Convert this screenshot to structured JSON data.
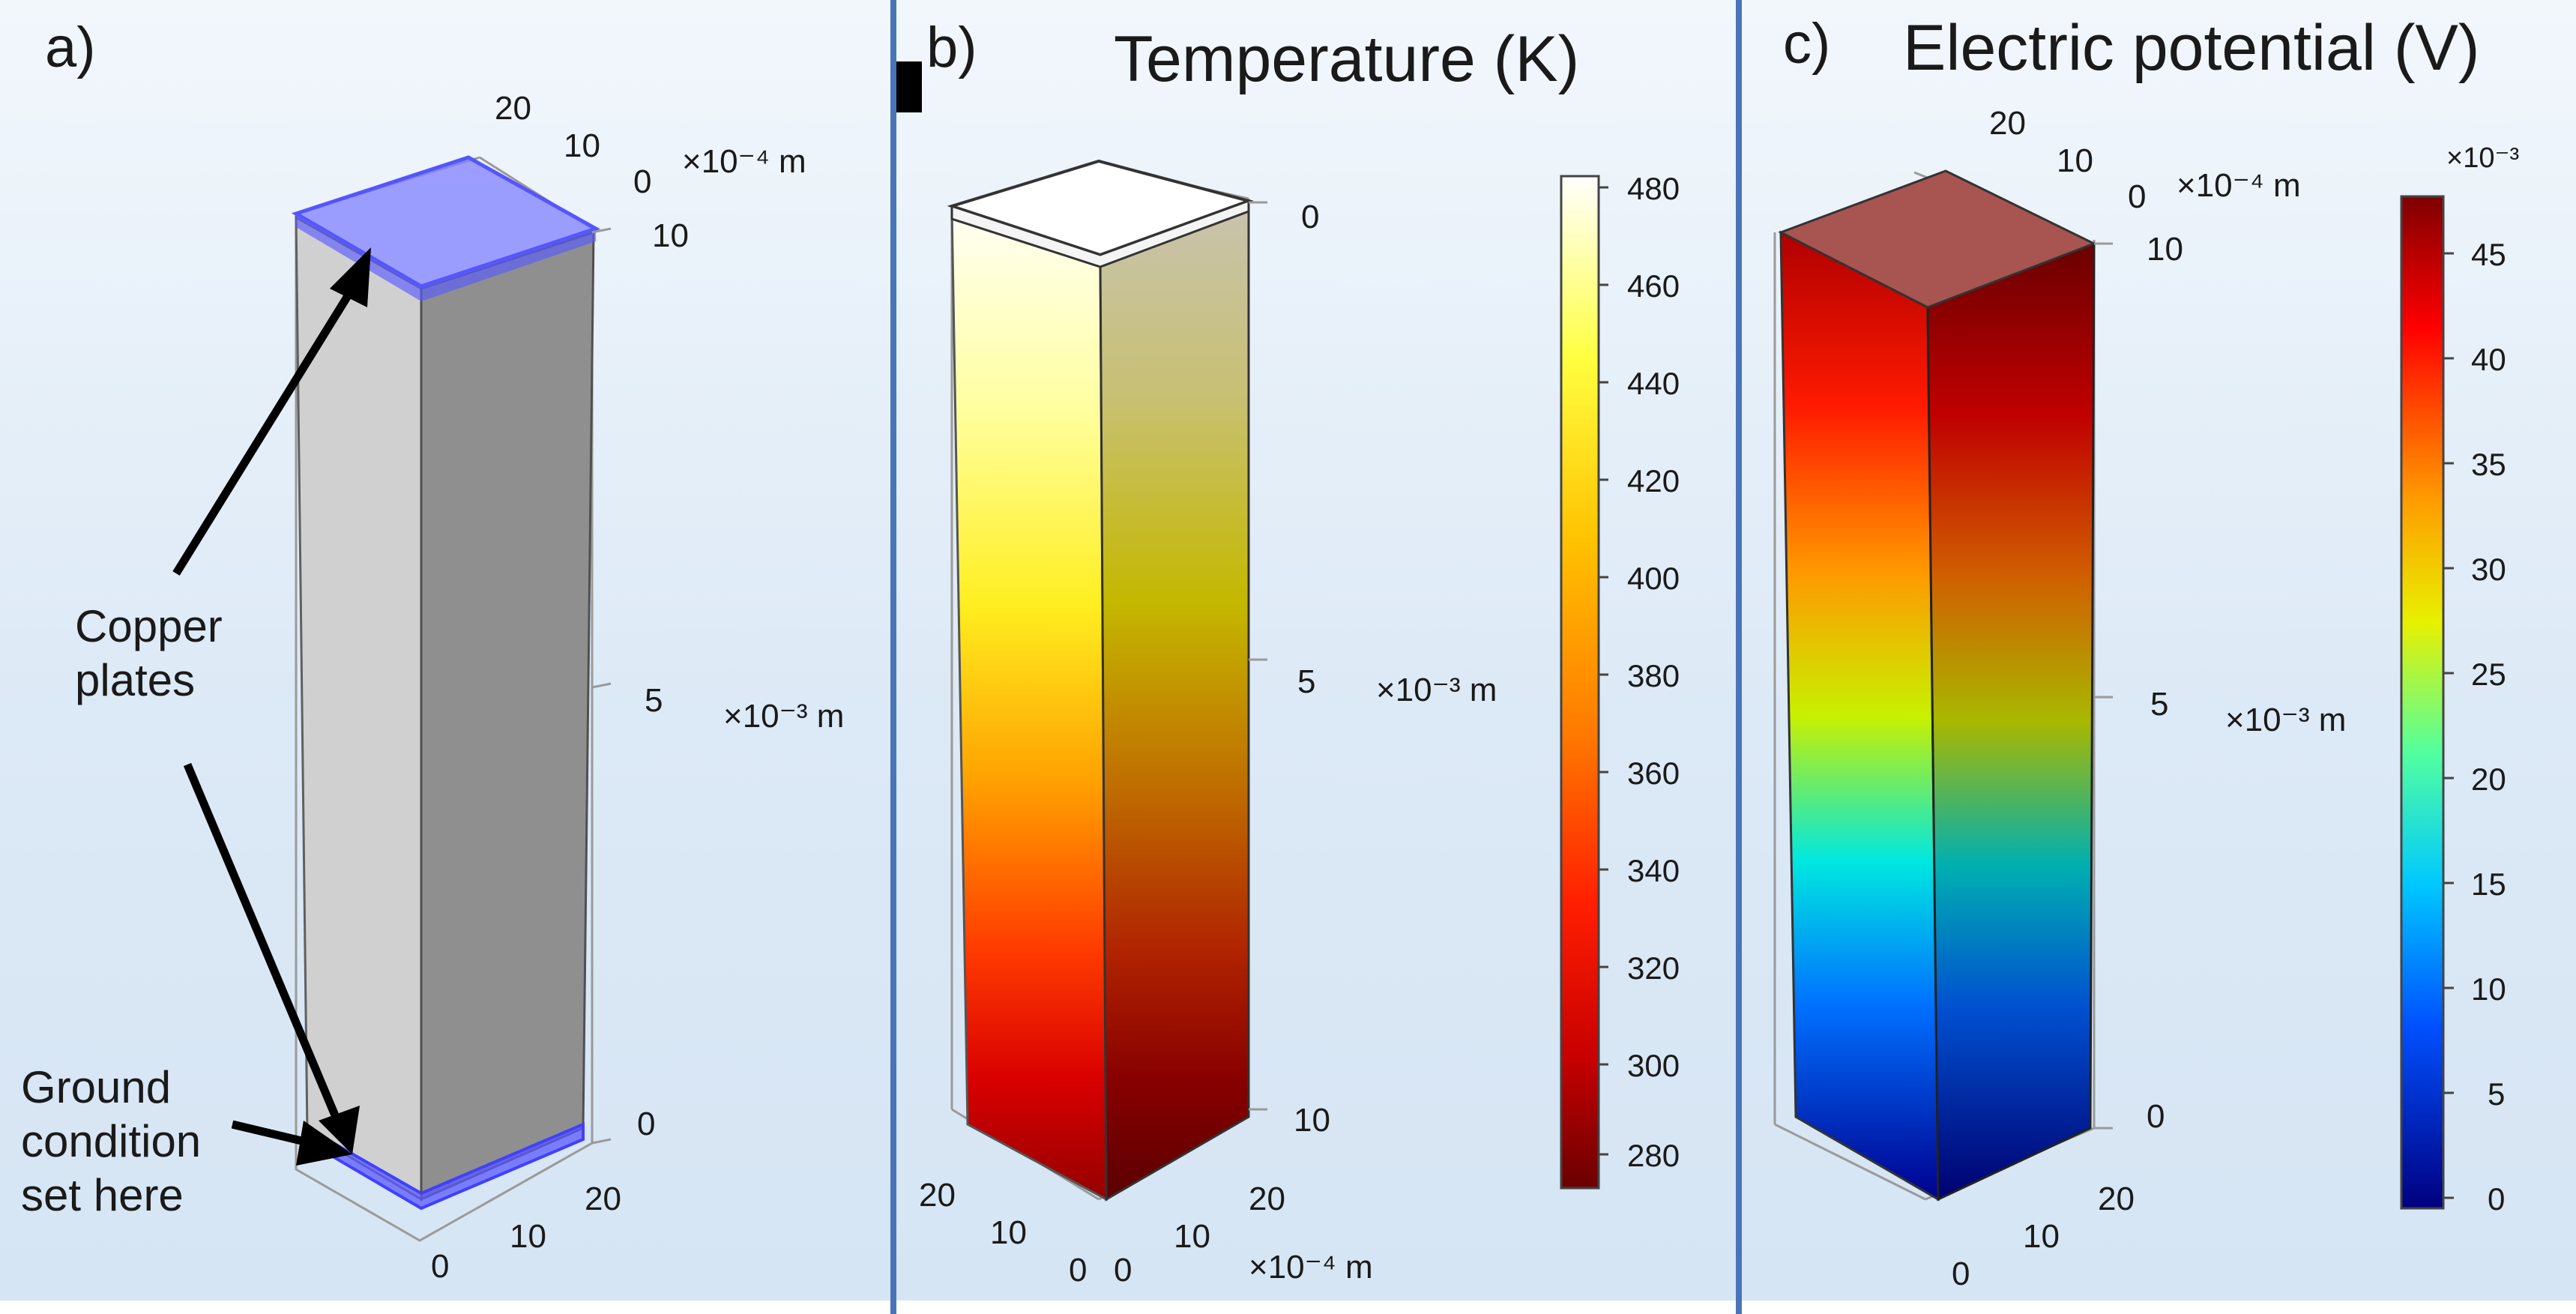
{
  "panels": {
    "a": {
      "letter": "a)",
      "axis_top": {
        "ticks": [
          "20",
          "10",
          "0"
        ],
        "unit": "×10⁻⁴ m"
      },
      "axis_vertical": {
        "ticks": [
          "10",
          "5",
          "0"
        ],
        "unit": "×10⁻³ m"
      },
      "axis_bottom": {
        "ticks": [
          "20",
          "10",
          "0"
        ]
      },
      "annotations": {
        "copper_plates": [
          "Copper",
          "plates"
        ],
        "ground": [
          "Ground",
          "condition",
          "set here"
        ]
      },
      "colors": {
        "plate": "#6b6bff",
        "front_face": "#d0d0d0",
        "side_face": "#8f8f8f"
      }
    },
    "b": {
      "letter": "b)",
      "title": "Temperature (K)",
      "axis_vertical": {
        "ticks": [
          "0",
          "5",
          "10"
        ],
        "unit": "×10⁻³ m"
      },
      "axis_bottom": {
        "ticks": [
          "20",
          "10",
          "0",
          "0",
          "10",
          "20"
        ],
        "unit": "×10⁻⁴ m"
      },
      "colorbar": {
        "ticks": [
          "480",
          "460",
          "440",
          "420",
          "400",
          "380",
          "360",
          "340",
          "320",
          "300",
          "280"
        ],
        "stops": [
          "#ffffff",
          "#ffff40",
          "#ffc200",
          "#ff7a00",
          "#ff1e00",
          "#c80000",
          "#6a0000"
        ],
        "range": [
          272,
          482
        ]
      }
    },
    "c": {
      "letter": "c)",
      "title": "Electric potential (V)",
      "axis_top": {
        "ticks": [
          "20",
          "10",
          "0"
        ],
        "unit": "×10⁻⁴ m"
      },
      "axis_vertical": {
        "ticks": [
          "10",
          "5",
          "0"
        ],
        "unit": "×10⁻³ m"
      },
      "axis_bottom": {
        "ticks": [
          "20",
          "10",
          "0"
        ]
      },
      "colorbar": {
        "multiplier": "×10⁻³",
        "ticks": [
          "45",
          "40",
          "35",
          "30",
          "25",
          "20",
          "15",
          "10",
          "5",
          "0"
        ],
        "stops": [
          "#7f0000",
          "#ff0000",
          "#ff9c00",
          "#e8f000",
          "#52ff9e",
          "#00c8ff",
          "#0050ff",
          "#00007f"
        ],
        "range": [
          0,
          48
        ]
      }
    }
  }
}
